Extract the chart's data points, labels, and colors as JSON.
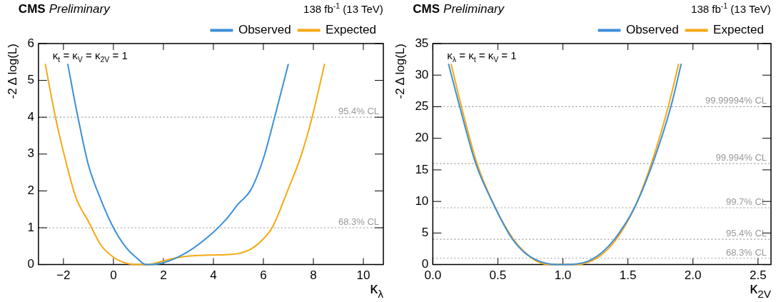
{
  "chart_data": [
    {
      "type": "line",
      "title": "CMS",
      "subtitle": "Preliminary",
      "xlabel": "κ$_{λ}$",
      "ylabel": "-2 Δ log(L)",
      "annotations": [
        "138 fb$^{-1}$ (13 TeV)",
        "κ$_{t}$ = κ$_{V}$ = κ$_{2V}$ = 1"
      ],
      "xlim": [
        -3,
        10.8
      ],
      "xticks": [
        -2,
        0,
        2,
        4,
        6,
        8,
        10
      ],
      "ylim": [
        0,
        6
      ],
      "yticks": [
        0,
        1,
        2,
        3,
        4,
        5,
        6
      ],
      "legend": "top right",
      "grid": false,
      "marker": "none",
      "line_style": "solid",
      "ref_lines": [
        {
          "axis": "y",
          "value": 1,
          "label": "68.3% CL",
          "color": "#999999",
          "line_style": "dotted"
        },
        {
          "axis": "y",
          "value": 4,
          "label": "95.4% CL",
          "color": "#999999",
          "line_style": "dotted"
        }
      ],
      "series": [
        {
          "name": "Observed",
          "color": "#3d8fd9",
          "x": [
            -1.83,
            -1.42,
            -1,
            -0.5,
            0,
            0.5,
            1,
            1.3,
            2,
            3,
            4,
            4.5,
            5,
            5.5,
            6,
            6.45,
            7
          ],
          "values": [
            5.45,
            4,
            2.7,
            1.76,
            1,
            0.47,
            0.14,
            0,
            0.05,
            0.36,
            0.88,
            1.22,
            1.65,
            2.03,
            2.88,
            4,
            5.45
          ]
        },
        {
          "name": "Expected",
          "color": "#f5a913",
          "x": [
            -2.73,
            -2.32,
            -2,
            -1.5,
            -1,
            -0.5,
            0,
            0.5,
            1,
            1.4,
            2,
            2.5,
            3,
            3.5,
            4,
            4.5,
            5,
            5.5,
            6,
            6.35,
            7,
            7.5,
            7.95,
            8.45
          ],
          "values": [
            5.45,
            4,
            3.06,
            1.82,
            1.17,
            0.53,
            0.2,
            0.04,
            0,
            0,
            0.1,
            0.18,
            0.23,
            0.25,
            0.26,
            0.27,
            0.3,
            0.42,
            0.7,
            1,
            2.06,
            2.94,
            4,
            5.45
          ]
        }
      ]
    },
    {
      "type": "line",
      "title": "CMS",
      "subtitle": "Preliminary",
      "xlabel": "κ$_{2V}$",
      "ylabel": "-2 Δ log(L)",
      "annotations": [
        "138 fb$^{-1}$ (13 TeV)",
        "κ$_{λ}$ = κ$_{t}$ = κ$_{V}$ = 1"
      ],
      "xlim": [
        0,
        2.6
      ],
      "xticks": [
        {
          "value": 0,
          "label": "0.0"
        },
        {
          "value": 0.5,
          "label": "0.5"
        },
        {
          "value": 1,
          "label": "1.0"
        },
        {
          "value": 1.5,
          "label": "1.5"
        },
        {
          "value": 2,
          "label": "2.0"
        },
        {
          "value": 2.5,
          "label": "2.5"
        }
      ],
      "ylim": [
        0,
        35
      ],
      "yticks": [
        0,
        5,
        10,
        15,
        20,
        25,
        30,
        35
      ],
      "legend": "top right",
      "grid": false,
      "marker": "none",
      "line_style": "solid",
      "ref_lines": [
        {
          "axis": "y",
          "value": 1,
          "label": "68.3% CL",
          "color": "#999999",
          "line_style": "dotted"
        },
        {
          "axis": "y",
          "value": 4,
          "label": "95.4% CL",
          "color": "#999999",
          "line_style": "dotted"
        },
        {
          "axis": "y",
          "value": 9,
          "label": "99.7% CL",
          "color": "#999999",
          "line_style": "dotted"
        },
        {
          "axis": "y",
          "value": 16,
          "label": "99.994% CL",
          "color": "#999999",
          "line_style": "dotted"
        },
        {
          "axis": "y",
          "value": 25,
          "label": "99.99994% CL",
          "color": "#999999",
          "line_style": "dotted"
        }
      ],
      "series": [
        {
          "name": "Observed",
          "color": "#3d8fd9",
          "x": [
            0.12,
            0.2,
            0.33,
            0.48,
            0.6,
            0.7,
            0.8,
            0.9,
            1.0,
            1.1,
            1.2,
            1.3,
            1.4,
            1.55,
            1.69,
            1.83,
            1.91
          ],
          "values": [
            31.8,
            25.5,
            16,
            9,
            4.4,
            2,
            0.7,
            0.1,
            0,
            0.1,
            0.6,
            1.9,
            4.1,
            9,
            16,
            25,
            31.8
          ]
        },
        {
          "name": "Expected",
          "color": "#f5a913",
          "x": [
            0.14,
            0.22,
            0.34,
            0.48,
            0.62,
            0.7,
            0.8,
            0.9,
            1.0,
            1.1,
            1.2,
            1.3,
            1.41,
            1.55,
            1.68,
            1.81,
            1.89
          ],
          "values": [
            31.8,
            25,
            16,
            9,
            4,
            2.1,
            0.5,
            0,
            0,
            0,
            0.4,
            1.6,
            4,
            9,
            16,
            25,
            31.8
          ]
        }
      ]
    }
  ]
}
